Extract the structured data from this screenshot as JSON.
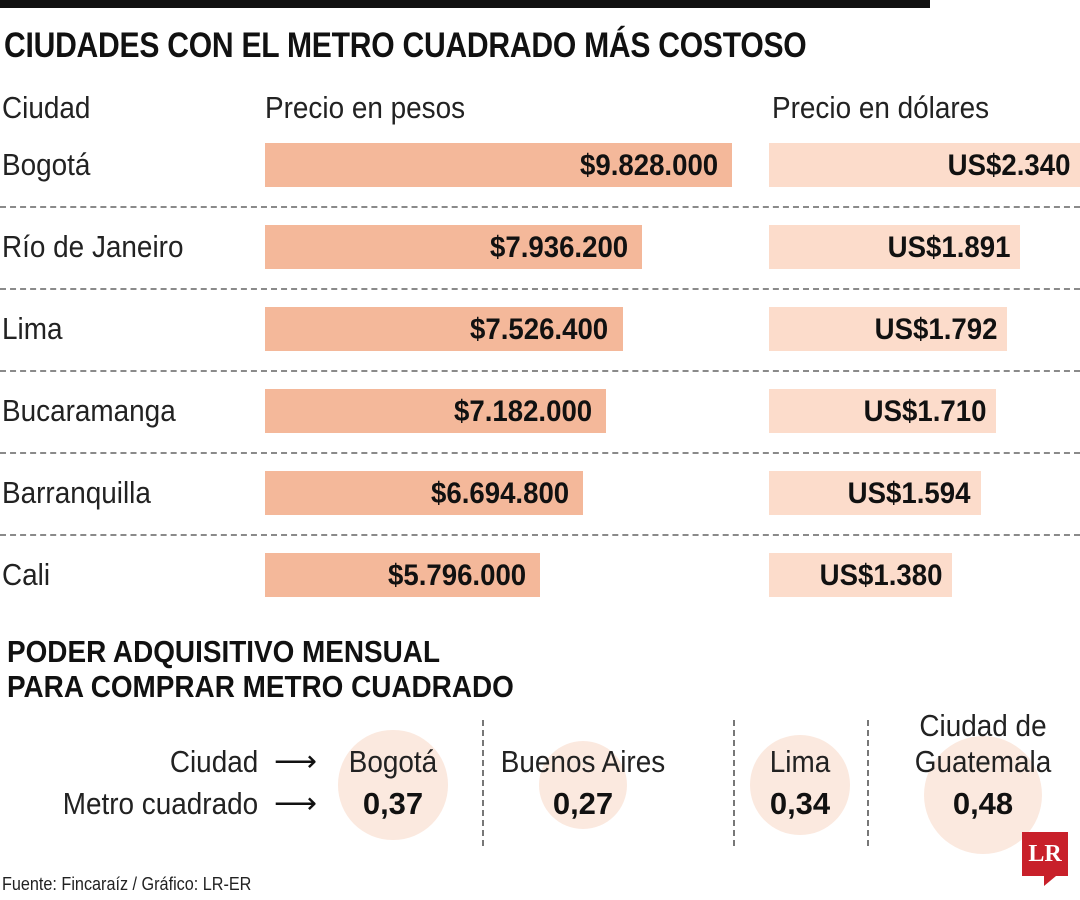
{
  "chart_data": [
    {
      "type": "bar",
      "title": "CIUDADES CON EL METRO CUADRADO MÁS COSTOSO",
      "column_headers": {
        "city": "Ciudad",
        "pesos": "Precio en pesos",
        "dollars": "Precio en dólares"
      },
      "categories": [
        "Bogotá",
        "Río de Janeiro",
        "Lima",
        "Bucaramanga",
        "Barranquilla",
        "Cali"
      ],
      "series": [
        {
          "name": "Precio en pesos",
          "values": [
            9828000,
            7936200,
            7526400,
            7182000,
            6694800,
            5796000
          ],
          "labels": [
            "$9.828.000",
            "$7.936.200",
            "$7.526.400",
            "$7.182.000",
            "$6.694.800",
            "$5.796.000"
          ],
          "color": "#f4b89a"
        },
        {
          "name": "Precio en dólares",
          "values": [
            2340,
            1891,
            1792,
            1710,
            1594,
            1380
          ],
          "labels": [
            "US$2.340",
            "US$1.891",
            "US$1.792",
            "US$1.710",
            "US$1.594",
            "US$1.380"
          ],
          "color": "#fcdccb"
        }
      ]
    },
    {
      "type": "bubble",
      "title_line1": "PODER ADQUISITIVO MENSUAL",
      "title_line2": "PARA COMPRAR METRO CUADRADO",
      "row_label_city": "Ciudad",
      "row_label_value": "Metro cuadrado",
      "categories": [
        "Bogotá",
        "Buenos Aires",
        "Lima",
        "Ciudad de Guatemala"
      ],
      "values": [
        0.37,
        0.27,
        0.34,
        0.48
      ],
      "labels": [
        "0,37",
        "0,27",
        "0,34",
        "0,48"
      ],
      "color": "#fbe9df"
    }
  ],
  "source": "Fuente: Fincaraíz / Gráfico: LR-ER",
  "logo": "LR",
  "logo_color": "#c8202a"
}
